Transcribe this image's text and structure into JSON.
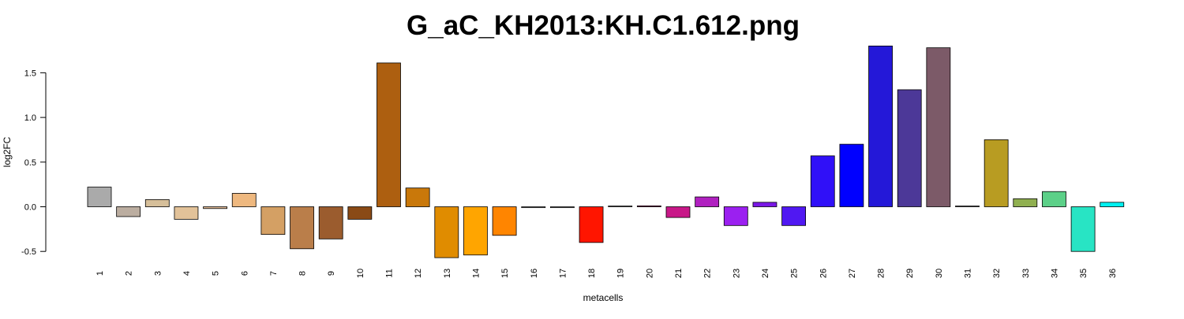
{
  "chart_data": {
    "type": "bar",
    "title": "G_aC_KH2013:KH.C1.612.png",
    "xlabel": "metacells",
    "ylabel": "log2FC",
    "ylim": [
      -0.6,
      1.8
    ],
    "yticks": [
      -0.5,
      0.0,
      0.5,
      1.0,
      1.5
    ],
    "ytick_labels": [
      "-0.5",
      "0.0",
      "0.5",
      "1.0",
      "1.5"
    ],
    "grid": false,
    "legend": "none",
    "categories": [
      "1",
      "2",
      "3",
      "4",
      "5",
      "6",
      "7",
      "8",
      "9",
      "10",
      "11",
      "12",
      "13",
      "14",
      "15",
      "16",
      "17",
      "18",
      "19",
      "20",
      "21",
      "22",
      "23",
      "24",
      "25",
      "26",
      "27",
      "28",
      "29",
      "30",
      "31",
      "32",
      "33",
      "34",
      "35",
      "36"
    ],
    "values": [
      0.22,
      -0.11,
      0.08,
      -0.14,
      -0.02,
      0.15,
      -0.31,
      -0.47,
      -0.36,
      -0.14,
      1.61,
      0.21,
      -0.57,
      -0.54,
      -0.32,
      -0.01,
      -0.01,
      -0.4,
      0.0,
      0.01,
      -0.12,
      0.11,
      -0.21,
      0.05,
      -0.21,
      0.57,
      0.7,
      1.8,
      1.31,
      1.78,
      0.0,
      0.75,
      0.09,
      0.17,
      -0.5,
      0.05
    ],
    "colors": [
      "#aaaaaa",
      "#bbada0",
      "#d6bf9a",
      "#e2c299",
      "#e6bf9a",
      "#eeb87f",
      "#d4a064",
      "#ba7e4a",
      "#9b5c2e",
      "#8a4a16",
      "#ad5f10",
      "#c9780a",
      "#e08c00",
      "#ffa500",
      "#ff8500",
      "#b8b8b8",
      "#b8b8b8",
      "#ff1500",
      "#b8b8b8",
      "#b01060",
      "#c81888",
      "#b020c0",
      "#9b20f0",
      "#7a18e6",
      "#5018f2",
      "#3010f8",
      "#0000ff",
      "#2418d8",
      "#4c3898",
      "#7c5a68",
      "#999999",
      "#b89c22",
      "#90b050",
      "#5cd088",
      "#28e4c4",
      "#00f0f0"
    ]
  }
}
